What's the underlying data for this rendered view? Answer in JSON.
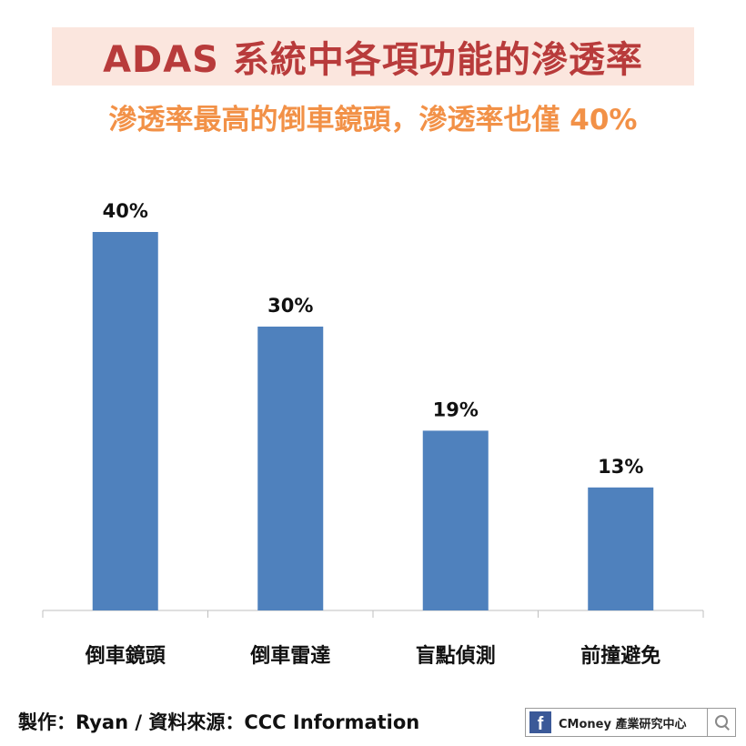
{
  "title": "ADAS 系統中各項功能的滲透率",
  "subtitle": "滲透率最高的倒車鏡頭，滲透率也僅 40%",
  "footer": {
    "credit": "製作：Ryan / 資料來源：CCC Information",
    "badge_icon_letter": "f",
    "badge_text": "CMoney 產業研究中心",
    "badge_icon": "facebook-icon",
    "search_icon": "search-icon"
  },
  "colors": {
    "bar": "#4f81bd",
    "title": "#b83b3b",
    "title_bg": "#fbe6de",
    "subtitle": "#f29147"
  },
  "chart_data": {
    "type": "bar",
    "categories": [
      "倒車鏡頭",
      "倒車雷達",
      "盲點偵測",
      "前撞避免"
    ],
    "values": [
      40,
      30,
      19,
      13
    ],
    "data_labels": [
      "40%",
      "30%",
      "19%",
      "13%"
    ],
    "unit": "%",
    "ylim": [
      0,
      40
    ],
    "grid": false,
    "legend": "none"
  }
}
